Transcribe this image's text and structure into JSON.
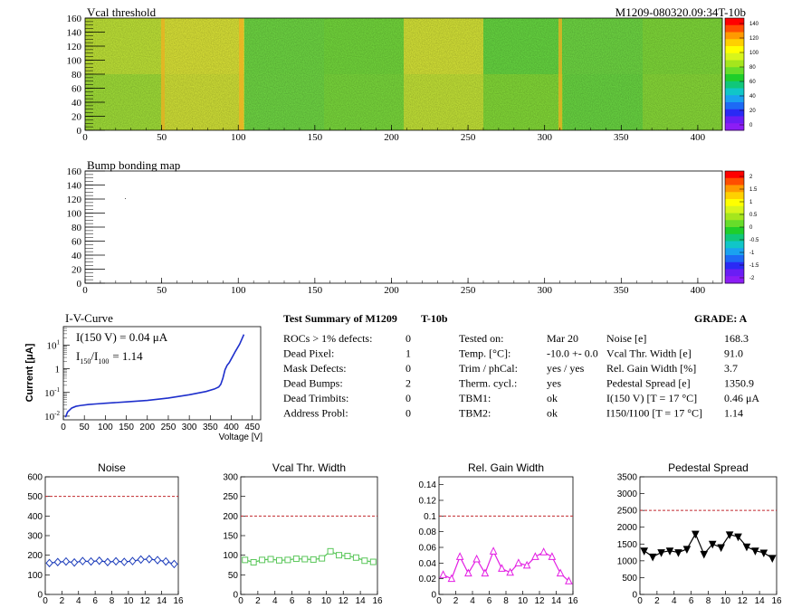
{
  "header": {
    "top_title": "Vcal threshold",
    "module_id": "M1209-080320.09:34T-10b",
    "bump_title": "Bump bonding map"
  },
  "maps": {
    "x_ticks": [
      "0",
      "50",
      "100",
      "150",
      "200",
      "250",
      "300",
      "350",
      "400"
    ],
    "y_ticks": [
      "0",
      "20",
      "40",
      "60",
      "80",
      "100",
      "120",
      "140",
      "160"
    ],
    "vcal_palette_ticks": [
      "140",
      "120",
      "100",
      "80",
      "60",
      "40",
      "20",
      "0"
    ],
    "bump_palette_ticks": [
      "2",
      "1.5",
      "1",
      "0.5",
      "0",
      "-0.5",
      "-1",
      "-1.5",
      "-2"
    ]
  },
  "iv": {
    "title": "I-V-Curve",
    "line1": "I(150 V) = 0.04 μA",
    "ratio_label": "I",
    "ratio_sub1": "150",
    "ratio_sub2": "100",
    "ratio_value": "= 1.14",
    "ylabel": "Current [μA]",
    "xlabel": "Voltage [V]",
    "y_tick_base": "10",
    "y_tick_exps": [
      "-2",
      "-1",
      "",
      "1"
    ],
    "y_tick_plain": [
      "",
      "",
      "1",
      ""
    ],
    "x_ticks": [
      "0",
      "50",
      "100",
      "150",
      "200",
      "250",
      "300",
      "350",
      "400",
      "450"
    ]
  },
  "summary": {
    "title": "Test Summary of M1209",
    "subtitle": "T-10b",
    "grade": "GRADE:  A",
    "left_rows": [
      {
        "label": "ROCs > 1% defects:",
        "value": "0"
      },
      {
        "label": "Dead Pixel:",
        "value": "1"
      },
      {
        "label": "Mask Defects:",
        "value": "0"
      },
      {
        "label": "Dead Bumps:",
        "value": "2"
      },
      {
        "label": "Dead Trimbits:",
        "value": "0"
      },
      {
        "label": "Address Probl:",
        "value": "0"
      }
    ],
    "mid_rows": [
      {
        "label": "Tested on:",
        "value": "Mar 20"
      },
      {
        "label": "Temp. [°C]:",
        "value": "-10.0 +- 0.0"
      },
      {
        "label": "Trim / phCal:",
        "value": "yes / yes"
      },
      {
        "label": "Therm. cycl.:",
        "value": "yes"
      },
      {
        "label": "TBM1:",
        "value": "ok"
      },
      {
        "label": "TBM2:",
        "value": "ok"
      }
    ],
    "right_rows": [
      {
        "label": "Noise [e]",
        "value": "168.3"
      },
      {
        "label": "Vcal Thr. Width [e]",
        "value": "91.0"
      },
      {
        "label": "Rel. Gain Width [%]",
        "value": "3.7"
      },
      {
        "label": "Pedestal Spread [e]",
        "value": "1350.9"
      },
      {
        "label": "I(150 V) [T = 17 °C]",
        "value": "0.46 μA"
      },
      {
        "label": "I150/I100  [T = 17 °C]",
        "value": "1.14"
      }
    ]
  },
  "colors": {
    "noise": "#1d3dbb",
    "vcal": "#59c659",
    "gain": "#e31ee3",
    "pedestal": "#000000",
    "cut": "#c1272d",
    "iv": "#1e2fcc"
  },
  "chart_data": [
    {
      "type": "line",
      "title": "I-V-Curve",
      "xlabel": "Voltage [V]",
      "ylabel": "Current [μA]",
      "yscale": "log",
      "xlim": [
        0,
        470
      ],
      "ylim": [
        0.007,
        60
      ],
      "x": [
        5,
        10,
        20,
        30,
        40,
        60,
        80,
        100,
        150,
        200,
        250,
        300,
        340,
        360,
        370,
        375,
        380,
        385,
        390,
        395,
        400,
        410,
        420,
        430
      ],
      "y": [
        0.009,
        0.015,
        0.022,
        0.026,
        0.028,
        0.031,
        0.033,
        0.035,
        0.04,
        0.046,
        0.058,
        0.08,
        0.11,
        0.14,
        0.17,
        0.22,
        0.4,
        0.9,
        1.4,
        1.8,
        2.6,
        5.5,
        11,
        28
      ]
    },
    {
      "type": "line",
      "title": "Noise",
      "xlim": [
        0,
        16
      ],
      "ylim": [
        0,
        600
      ],
      "x_ticks": [
        "0",
        "2",
        "4",
        "6",
        "8",
        "10",
        "12",
        "14",
        "16"
      ],
      "y_ticks": [
        "0",
        "100",
        "200",
        "300",
        "400",
        "500",
        "600"
      ],
      "cut": 500,
      "x": [
        0.5,
        1.5,
        2.5,
        3.5,
        4.5,
        5.5,
        6.5,
        7.5,
        8.5,
        9.5,
        10.5,
        11.5,
        12.5,
        13.5,
        14.5,
        15.5
      ],
      "values": [
        160,
        165,
        168,
        163,
        170,
        168,
        172,
        165,
        169,
        166,
        170,
        178,
        180,
        175,
        168,
        155
      ]
    },
    {
      "type": "line",
      "title": "Vcal Thr. Width",
      "xlim": [
        0,
        16
      ],
      "ylim": [
        0,
        300
      ],
      "x_ticks": [
        "0",
        "2",
        "4",
        "6",
        "8",
        "10",
        "12",
        "14",
        "16"
      ],
      "y_ticks": [
        "0",
        "50",
        "100",
        "150",
        "200",
        "250",
        "300"
      ],
      "cut": 200,
      "x": [
        0.5,
        1.5,
        2.5,
        3.5,
        4.5,
        5.5,
        6.5,
        7.5,
        8.5,
        9.5,
        10.5,
        11.5,
        12.5,
        13.5,
        14.5,
        15.5
      ],
      "values": [
        88,
        82,
        88,
        90,
        87,
        88,
        91,
        90,
        89,
        92,
        110,
        100,
        98,
        94,
        86,
        83
      ]
    },
    {
      "type": "line",
      "title": "Rel. Gain Width",
      "xlim": [
        0,
        16
      ],
      "ylim": [
        0,
        0.15
      ],
      "x_ticks": [
        "0",
        "2",
        "4",
        "6",
        "8",
        "10",
        "12",
        "14",
        "16"
      ],
      "y_ticks": [
        "0",
        "0.02",
        "0.04",
        "0.06",
        "0.08",
        "0.1",
        "0.12",
        "0.14"
      ],
      "cut": 0.1,
      "x": [
        0.5,
        1.5,
        2.5,
        3.5,
        4.5,
        5.5,
        6.5,
        7.5,
        8.5,
        9.5,
        10.5,
        11.5,
        12.5,
        13.5,
        14.5,
        15.5
      ],
      "values": [
        0.025,
        0.02,
        0.048,
        0.027,
        0.045,
        0.027,
        0.055,
        0.033,
        0.028,
        0.04,
        0.037,
        0.048,
        0.054,
        0.048,
        0.027,
        0.017
      ]
    },
    {
      "type": "line",
      "title": "Pedestal Spread",
      "xlim": [
        0,
        16
      ],
      "ylim": [
        0,
        3500
      ],
      "x_ticks": [
        "0",
        "2",
        "4",
        "6",
        "8",
        "10",
        "12",
        "14",
        "16"
      ],
      "y_ticks": [
        "0",
        "500",
        "1000",
        "1500",
        "2000",
        "2500",
        "3000",
        "3500"
      ],
      "cut": 2500,
      "x": [
        0.5,
        1.5,
        2.5,
        3.5,
        4.5,
        5.5,
        6.5,
        7.5,
        8.5,
        9.5,
        10.5,
        11.5,
        12.5,
        13.5,
        14.5,
        15.5
      ],
      "values": [
        1300,
        1120,
        1250,
        1300,
        1250,
        1350,
        1800,
        1200,
        1500,
        1400,
        1780,
        1720,
        1420,
        1300,
        1240,
        1080
      ]
    }
  ]
}
